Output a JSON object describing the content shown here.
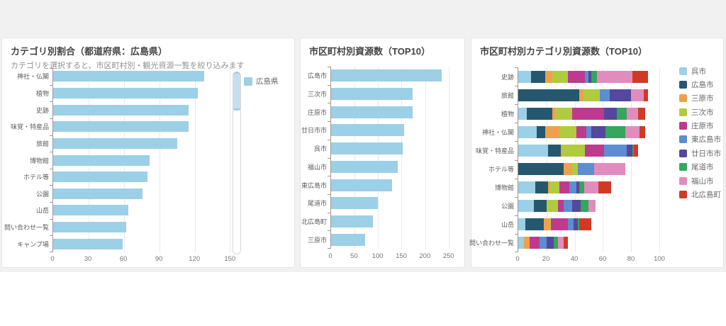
{
  "page": {
    "background_band_color": "#f1f1f2",
    "accent_blue": "#9CD0E6"
  },
  "cards": [
    {
      "title": "カテゴリ別割合（都道府県：広島県）",
      "subtitle": "カテゴリを選択すると、市区町村別・観光資源一覧を絞り込みます",
      "legend_label": "広島県"
    },
    {
      "title": "市区町村別資源数（TOP10）"
    },
    {
      "title": "市区町村別カテゴリ別資源数（TOP10）"
    }
  ],
  "chart_data": [
    {
      "type": "bar",
      "title": "カテゴリ別割合（都道府県：広島県）",
      "legend": [
        "広島県"
      ],
      "legend_position": "right-top",
      "color": "#9CD0E6",
      "categories": [
        "神社・仏閣",
        "植物",
        "史跡",
        "味覚・特産品",
        "旅館",
        "博物館",
        "ホテル等",
        "公園",
        "山岳",
        "問い合わせ一覧",
        "キャンプ場"
      ],
      "values": [
        128,
        123,
        115,
        115,
        105,
        82,
        80,
        76,
        64,
        62,
        59
      ],
      "xticks": [
        0,
        30,
        60,
        90,
        120,
        150
      ],
      "xlim": [
        0,
        163
      ],
      "grid": true,
      "has_datazoom_slider": true
    },
    {
      "type": "bar",
      "title": "市区町村別資源数（TOP10）",
      "color": "#9CD0E6",
      "categories": [
        "広島市",
        "三次市",
        "庄原市",
        "廿日市市",
        "呉市",
        "福山市",
        "東広島市",
        "尾道市",
        "北広島町",
        "三原市"
      ],
      "values": [
        235,
        173,
        173,
        155,
        153,
        142,
        129,
        99,
        89,
        73
      ],
      "xticks": [
        0,
        50,
        100,
        150,
        200,
        250
      ],
      "xlim": [
        0,
        258
      ],
      "grid": true
    },
    {
      "type": "stacked-bar",
      "title": "市区町村別カテゴリ別資源数（TOP10）",
      "legend_position": "right",
      "categories": [
        "史跡",
        "旅館",
        "植物",
        "神社・仏閣",
        "味覚・特産品",
        "ホテル等",
        "博物館",
        "公園",
        "山岳",
        "問い合わせ一覧"
      ],
      "series": [
        {
          "name": "呉市",
          "color": "#9CD0E6",
          "values": [
            9,
            0,
            6,
            13,
            21,
            0,
            12,
            11,
            5,
            4
          ]
        },
        {
          "name": "広島市",
          "color": "#25586E",
          "values": [
            10,
            43,
            18,
            6,
            9,
            32,
            9,
            9,
            13,
            0
          ]
        },
        {
          "name": "三原市",
          "color": "#EFA04C",
          "values": [
            5,
            3,
            2,
            10,
            1,
            6,
            1,
            0,
            4,
            4
          ]
        },
        {
          "name": "三次市",
          "color": "#B0CC3E",
          "values": [
            11,
            12,
            12,
            12,
            16,
            4,
            7,
            8,
            1,
            0
          ]
        },
        {
          "name": "庄原市",
          "color": "#BE3A8E",
          "values": [
            12,
            0,
            23,
            7,
            14,
            0,
            7,
            4,
            12,
            7
          ]
        },
        {
          "name": "東広島市",
          "color": "#5C8ED1",
          "values": [
            3,
            7,
            0,
            4,
            16,
            12,
            5,
            6,
            4,
            5
          ]
        },
        {
          "name": "廿日市市",
          "color": "#54489C",
          "values": [
            2,
            15,
            9,
            10,
            4,
            0,
            2,
            6,
            3,
            5
          ]
        },
        {
          "name": "尾道市",
          "color": "#35A65E",
          "values": [
            4,
            0,
            7,
            14,
            1,
            0,
            4,
            6,
            1,
            3
          ]
        },
        {
          "name": "福山市",
          "color": "#E28CBE",
          "values": [
            25,
            9,
            8,
            10,
            0,
            22,
            10,
            5,
            0,
            4
          ]
        },
        {
          "name": "北広島町",
          "color": "#D03A24",
          "values": [
            11,
            3,
            5,
            4,
            3,
            0,
            9,
            0,
            9,
            3
          ]
        }
      ],
      "xticks": [
        0,
        20,
        40,
        60,
        80,
        100
      ],
      "xlim": [
        0,
        105
      ],
      "grid": true
    }
  ]
}
